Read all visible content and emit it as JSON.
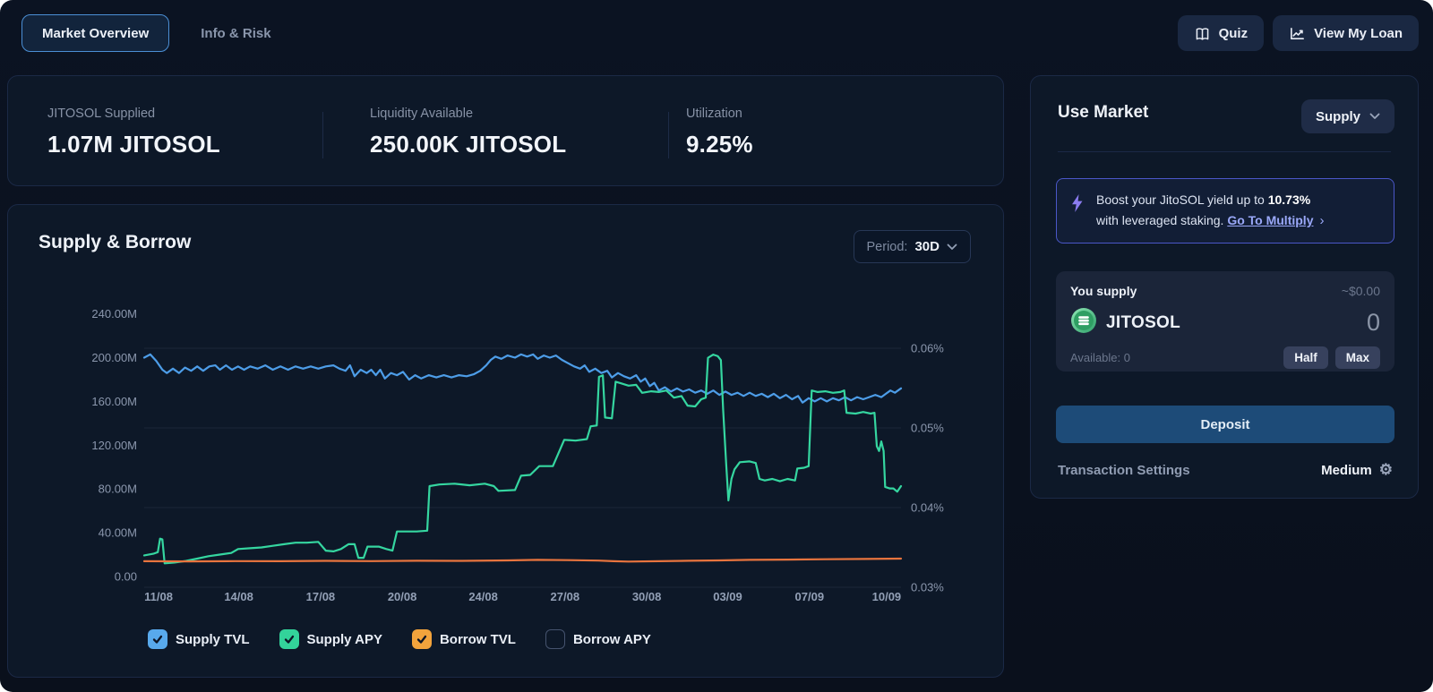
{
  "topbar": {
    "tabs": [
      {
        "label": "Market Overview",
        "active": true
      },
      {
        "label": "Info & Risk",
        "active": false
      }
    ],
    "actions": [
      {
        "label": "Quiz",
        "icon": "book-icon"
      },
      {
        "label": "View My Loan",
        "icon": "line-chart-icon"
      }
    ]
  },
  "stats": [
    {
      "label": "JITOSOL Supplied",
      "value": "1.07M JITOSOL"
    },
    {
      "label": "Liquidity Available",
      "value": "250.00K JITOSOL"
    },
    {
      "label": "Utilization",
      "value": "9.25%"
    }
  ],
  "chart_card": {
    "title": "Supply & Borrow",
    "period_label": "Period:",
    "period_value": "30D"
  },
  "chart_data": {
    "type": "line",
    "title": "Supply & Borrow",
    "x_unit": "fraction of 30-day window from 11/08 to 10/09",
    "grid": true,
    "legend_position": "bottom",
    "left_axis": {
      "title": "TVL",
      "ticks": [
        "240.00M",
        "200.00M",
        "160.00M",
        "120.00M",
        "80.00M",
        "40.00M",
        "0.00"
      ],
      "values": [
        240,
        200,
        160,
        120,
        80,
        40,
        0
      ],
      "range": [
        0,
        240
      ]
    },
    "right_axis": {
      "title": "APY",
      "ticks": [
        "0.06%",
        "0.05%",
        "0.04%",
        "0.03%"
      ],
      "values": [
        0.06,
        0.05,
        0.04,
        0.03
      ],
      "range": [
        0.03,
        0.06
      ]
    },
    "x_ticks": [
      {
        "label": "11/08",
        "t": 0.019
      },
      {
        "label": "14/08",
        "t": 0.125
      },
      {
        "label": "17/08",
        "t": 0.233
      },
      {
        "label": "20/08",
        "t": 0.341
      },
      {
        "label": "24/08",
        "t": 0.448
      },
      {
        "label": "27/08",
        "t": 0.556
      },
      {
        "label": "30/08",
        "t": 0.664
      },
      {
        "label": "03/09",
        "t": 0.771
      },
      {
        "label": "07/09",
        "t": 0.879
      },
      {
        "label": "10/09",
        "t": 0.981
      }
    ],
    "series": [
      {
        "name": "Supply TVL",
        "axis": "left",
        "visible": true,
        "line_color": "#4d9de8",
        "legend_color": "#58a9ec",
        "points": [
          [
            0,
            200
          ],
          [
            0.008,
            203
          ],
          [
            0.016,
            197
          ],
          [
            0.024,
            189
          ],
          [
            0.03,
            186
          ],
          [
            0.038,
            190
          ],
          [
            0.046,
            186
          ],
          [
            0.054,
            191
          ],
          [
            0.062,
            188
          ],
          [
            0.07,
            192
          ],
          [
            0.078,
            188
          ],
          [
            0.086,
            192
          ],
          [
            0.094,
            193
          ],
          [
            0.1,
            189
          ],
          [
            0.108,
            193
          ],
          [
            0.116,
            189
          ],
          [
            0.124,
            192
          ],
          [
            0.132,
            189
          ],
          [
            0.14,
            192
          ],
          [
            0.15,
            190
          ],
          [
            0.16,
            193
          ],
          [
            0.17,
            189
          ],
          [
            0.18,
            192
          ],
          [
            0.19,
            189
          ],
          [
            0.2,
            192
          ],
          [
            0.21,
            190
          ],
          [
            0.22,
            192
          ],
          [
            0.23,
            190
          ],
          [
            0.24,
            192
          ],
          [
            0.25,
            193
          ],
          [
            0.258,
            190
          ],
          [
            0.266,
            188
          ],
          [
            0.272,
            193
          ],
          [
            0.278,
            183
          ],
          [
            0.286,
            189
          ],
          [
            0.294,
            186
          ],
          [
            0.3,
            189
          ],
          [
            0.306,
            184
          ],
          [
            0.312,
            189
          ],
          [
            0.318,
            181
          ],
          [
            0.326,
            186
          ],
          [
            0.334,
            184
          ],
          [
            0.342,
            187
          ],
          [
            0.35,
            180
          ],
          [
            0.358,
            184
          ],
          [
            0.366,
            181
          ],
          [
            0.376,
            184
          ],
          [
            0.386,
            182
          ],
          [
            0.396,
            184
          ],
          [
            0.406,
            182
          ],
          [
            0.416,
            184
          ],
          [
            0.426,
            183
          ],
          [
            0.436,
            185
          ],
          [
            0.444,
            188
          ],
          [
            0.452,
            193
          ],
          [
            0.458,
            198
          ],
          [
            0.464,
            201
          ],
          [
            0.472,
            199
          ],
          [
            0.48,
            202
          ],
          [
            0.49,
            200
          ],
          [
            0.498,
            203
          ],
          [
            0.506,
            201
          ],
          [
            0.514,
            203
          ],
          [
            0.52,
            199
          ],
          [
            0.528,
            202
          ],
          [
            0.536,
            200
          ],
          [
            0.544,
            202
          ],
          [
            0.552,
            198
          ],
          [
            0.56,
            195
          ],
          [
            0.568,
            192
          ],
          [
            0.576,
            190
          ],
          [
            0.582,
            193
          ],
          [
            0.588,
            187
          ],
          [
            0.596,
            190
          ],
          [
            0.604,
            186
          ],
          [
            0.612,
            188
          ],
          [
            0.618,
            182
          ],
          [
            0.626,
            186
          ],
          [
            0.634,
            183
          ],
          [
            0.642,
            181
          ],
          [
            0.65,
            184
          ],
          [
            0.656,
            178
          ],
          [
            0.662,
            181
          ],
          [
            0.668,
            174
          ],
          [
            0.674,
            177
          ],
          [
            0.68,
            170
          ],
          [
            0.688,
            173
          ],
          [
            0.696,
            169
          ],
          [
            0.704,
            172
          ],
          [
            0.712,
            169
          ],
          [
            0.72,
            171
          ],
          [
            0.728,
            168
          ],
          [
            0.736,
            170
          ],
          [
            0.744,
            167
          ],
          [
            0.752,
            170
          ],
          [
            0.76,
            166
          ],
          [
            0.768,
            169
          ],
          [
            0.776,
            166
          ],
          [
            0.784,
            168
          ],
          [
            0.792,
            165
          ],
          [
            0.8,
            168
          ],
          [
            0.808,
            165
          ],
          [
            0.816,
            167
          ],
          [
            0.824,
            164
          ],
          [
            0.832,
            167
          ],
          [
            0.84,
            163
          ],
          [
            0.848,
            166
          ],
          [
            0.856,
            162
          ],
          [
            0.864,
            165
          ],
          [
            0.87,
            159
          ],
          [
            0.878,
            163
          ],
          [
            0.886,
            160
          ],
          [
            0.894,
            163
          ],
          [
            0.902,
            160
          ],
          [
            0.91,
            163
          ],
          [
            0.918,
            161
          ],
          [
            0.926,
            164
          ],
          [
            0.934,
            161
          ],
          [
            0.942,
            164
          ],
          [
            0.95,
            162
          ],
          [
            0.958,
            164
          ],
          [
            0.966,
            166
          ],
          [
            0.974,
            164
          ],
          [
            0.98,
            167
          ],
          [
            0.986,
            170
          ],
          [
            0.992,
            168
          ],
          [
            1,
            172
          ]
        ]
      },
      {
        "name": "Supply APY",
        "axis": "right",
        "visible": true,
        "line_color": "#35d6a0",
        "legend_color": "#33d39a",
        "points": [
          [
            0,
            0.034
          ],
          [
            0.012,
            0.0342
          ],
          [
            0.018,
            0.0344
          ],
          [
            0.021,
            0.0361
          ],
          [
            0.024,
            0.036
          ],
          [
            0.027,
            0.033
          ],
          [
            0.04,
            0.0331
          ],
          [
            0.055,
            0.0333
          ],
          [
            0.07,
            0.0336
          ],
          [
            0.085,
            0.0339
          ],
          [
            0.1,
            0.0341
          ],
          [
            0.115,
            0.0343
          ],
          [
            0.124,
            0.0348
          ],
          [
            0.14,
            0.0349
          ],
          [
            0.155,
            0.035
          ],
          [
            0.17,
            0.0352
          ],
          [
            0.185,
            0.0354
          ],
          [
            0.2,
            0.0356
          ],
          [
            0.215,
            0.0356
          ],
          [
            0.23,
            0.0357
          ],
          [
            0.24,
            0.0346
          ],
          [
            0.25,
            0.0345
          ],
          [
            0.26,
            0.0348
          ],
          [
            0.27,
            0.0354
          ],
          [
            0.278,
            0.0354
          ],
          [
            0.283,
            0.0337
          ],
          [
            0.29,
            0.0337
          ],
          [
            0.295,
            0.0351
          ],
          [
            0.31,
            0.0351
          ],
          [
            0.32,
            0.0348
          ],
          [
            0.328,
            0.0346
          ],
          [
            0.334,
            0.037
          ],
          [
            0.36,
            0.037
          ],
          [
            0.374,
            0.0371
          ],
          [
            0.377,
            0.0427
          ],
          [
            0.39,
            0.0429
          ],
          [
            0.41,
            0.043
          ],
          [
            0.43,
            0.0428
          ],
          [
            0.45,
            0.043
          ],
          [
            0.462,
            0.0427
          ],
          [
            0.468,
            0.0421
          ],
          [
            0.49,
            0.0422
          ],
          [
            0.498,
            0.044
          ],
          [
            0.51,
            0.0441
          ],
          [
            0.522,
            0.0452
          ],
          [
            0.54,
            0.0452
          ],
          [
            0.555,
            0.0485
          ],
          [
            0.57,
            0.0484
          ],
          [
            0.585,
            0.0486
          ],
          [
            0.59,
            0.0502
          ],
          [
            0.598,
            0.0503
          ],
          [
            0.601,
            0.0564
          ],
          [
            0.606,
            0.0566
          ],
          [
            0.609,
            0.0513
          ],
          [
            0.618,
            0.0512
          ],
          [
            0.623,
            0.0558
          ],
          [
            0.63,
            0.0556
          ],
          [
            0.64,
            0.0553
          ],
          [
            0.65,
            0.0554
          ],
          [
            0.658,
            0.0544
          ],
          [
            0.67,
            0.0546
          ],
          [
            0.68,
            0.0545
          ],
          [
            0.69,
            0.0547
          ],
          [
            0.7,
            0.0538
          ],
          [
            0.71,
            0.054
          ],
          [
            0.718,
            0.0528
          ],
          [
            0.728,
            0.0527
          ],
          [
            0.736,
            0.0536
          ],
          [
            0.742,
            0.0538
          ],
          [
            0.745,
            0.0588
          ],
          [
            0.752,
            0.0592
          ],
          [
            0.758,
            0.059
          ],
          [
            0.762,
            0.0585
          ],
          [
            0.765,
            0.0523
          ],
          [
            0.769,
            0.0455
          ],
          [
            0.772,
            0.0409
          ],
          [
            0.776,
            0.0436
          ],
          [
            0.78,
            0.0448
          ],
          [
            0.787,
            0.0457
          ],
          [
            0.8,
            0.0458
          ],
          [
            0.808,
            0.0456
          ],
          [
            0.813,
            0.0436
          ],
          [
            0.82,
            0.0434
          ],
          [
            0.83,
            0.0436
          ],
          [
            0.84,
            0.0433
          ],
          [
            0.85,
            0.0436
          ],
          [
            0.86,
            0.0434
          ],
          [
            0.863,
            0.0449
          ],
          [
            0.872,
            0.045
          ],
          [
            0.878,
            0.0452
          ],
          [
            0.882,
            0.0547
          ],
          [
            0.89,
            0.0545
          ],
          [
            0.9,
            0.0546
          ],
          [
            0.91,
            0.0544
          ],
          [
            0.92,
            0.0545
          ],
          [
            0.925,
            0.0547
          ],
          [
            0.928,
            0.0519
          ],
          [
            0.94,
            0.0518
          ],
          [
            0.95,
            0.052
          ],
          [
            0.96,
            0.0518
          ],
          [
            0.965,
            0.0519
          ],
          [
            0.968,
            0.0477
          ],
          [
            0.971,
            0.0471
          ],
          [
            0.974,
            0.0483
          ],
          [
            0.977,
            0.0471
          ],
          [
            0.979,
            0.0426
          ],
          [
            0.985,
            0.0424
          ],
          [
            0.99,
            0.0424
          ],
          [
            0.995,
            0.042
          ],
          [
            1,
            0.0427
          ]
        ]
      },
      {
        "name": "Borrow TVL",
        "axis": "left",
        "visible": true,
        "line_color": "#e8743e",
        "legend_color": "#f2a33c",
        "points": [
          [
            0,
            14
          ],
          [
            0.06,
            13.8
          ],
          [
            0.12,
            14.1
          ],
          [
            0.18,
            14
          ],
          [
            0.24,
            14.3
          ],
          [
            0.3,
            14.1
          ],
          [
            0.36,
            14.4
          ],
          [
            0.42,
            14.3
          ],
          [
            0.48,
            14.7
          ],
          [
            0.52,
            15.2
          ],
          [
            0.56,
            15
          ],
          [
            0.6,
            14.6
          ],
          [
            0.62,
            14
          ],
          [
            0.64,
            13.7
          ],
          [
            0.68,
            14
          ],
          [
            0.72,
            14.4
          ],
          [
            0.76,
            14.7
          ],
          [
            0.8,
            15.2
          ],
          [
            0.85,
            15.5
          ],
          [
            0.9,
            15.8
          ],
          [
            0.95,
            16
          ],
          [
            1,
            16.4
          ]
        ]
      },
      {
        "name": "Borrow APY",
        "axis": "right",
        "visible": false,
        "line_color": null,
        "legend_color": null,
        "points": []
      }
    ]
  },
  "side_panel": {
    "title": "Use Market",
    "mode_selector": "Supply",
    "boost": {
      "text1": "Boost your JitoSOL yield up to ",
      "highlight": "10.73%",
      "text2": "with leveraged staking. ",
      "link_label": "Go To Multiply"
    },
    "supply_card": {
      "label": "You supply",
      "usd_value": "~$0.00",
      "token": "JITOSOL",
      "amount": "0",
      "available": "Available: 0",
      "half_label": "Half",
      "max_label": "Max"
    },
    "deposit_label": "Deposit",
    "transaction_settings": {
      "label": "Transaction Settings",
      "value": "Medium"
    }
  },
  "colors": {
    "page_bg": "#0a1120",
    "card_bg": "#0d1828",
    "accent_blue": "#4b8fd5",
    "supply_tvl": "#4d9de8",
    "supply_apy": "#35d6a0",
    "borrow_tvl": "#e8743e",
    "boost_border": "#4a57c8",
    "boost_link": "#9aa8f8",
    "deposit_bg": "#1d4b78"
  }
}
